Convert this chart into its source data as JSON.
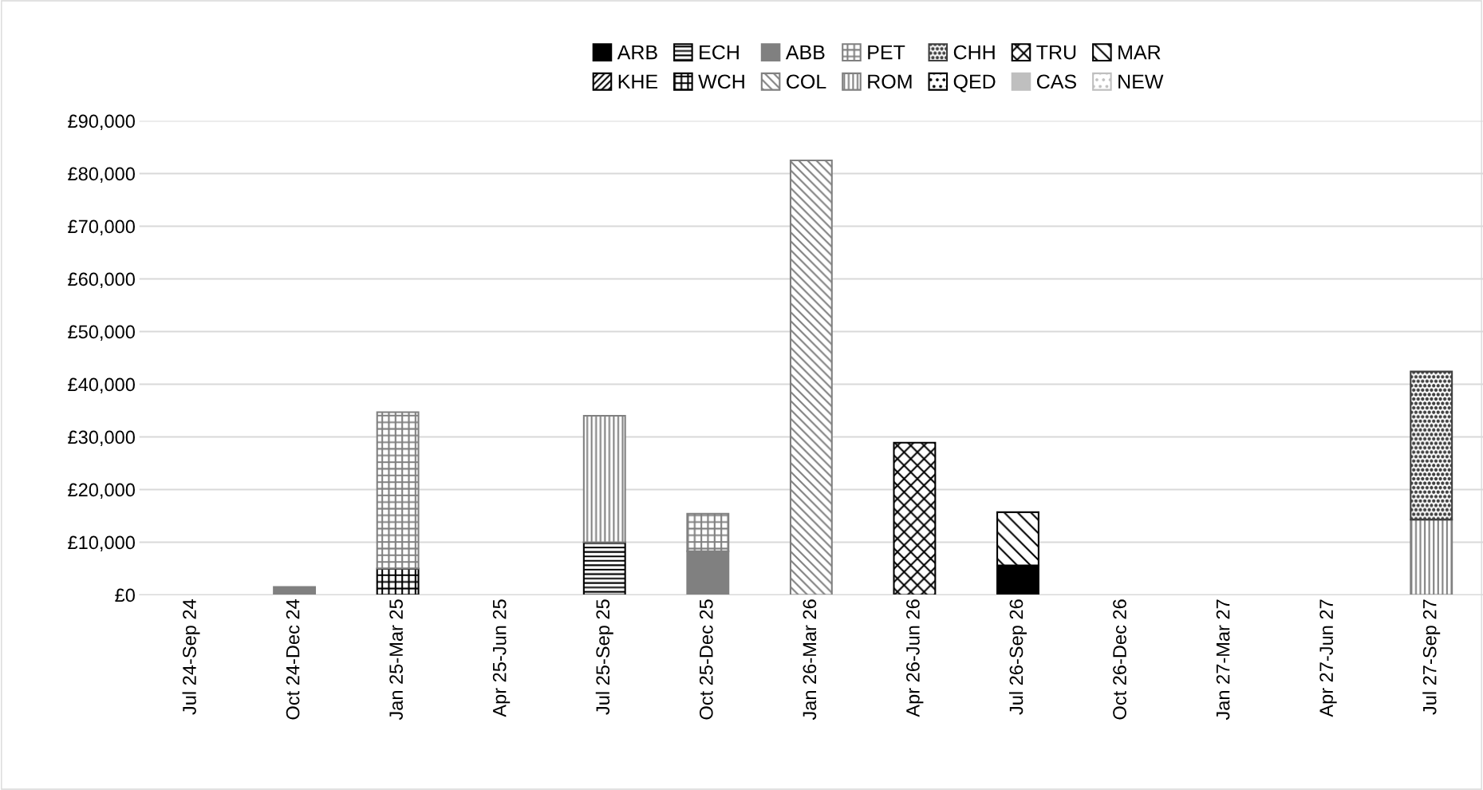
{
  "chart_data": {
    "type": "bar",
    "stacked": true,
    "categories": [
      "Jul 24-Sep 24",
      "Oct 24-Dec 24",
      "Jan 25-Mar 25",
      "Apr 25-Jun 25",
      "Jul 25-Sep 25",
      "Oct 25-Dec 25",
      "Jan 26-Mar 26",
      "Apr 26-Jun 26",
      "Jul 26-Sep 26",
      "Oct 26-Dec 26",
      "Jan 27-Mar 27",
      "Apr 27-Jun 27",
      "Jul 27-Sep 27"
    ],
    "series": [
      {
        "name": "ARB",
        "color": "#000000",
        "values": [
          null,
          null,
          null,
          null,
          null,
          null,
          null,
          null,
          5600,
          null,
          null,
          null,
          null
        ]
      },
      {
        "name": "KHE",
        "color": "#000000",
        "values": [
          null,
          null,
          null,
          null,
          null,
          null,
          null,
          null,
          null,
          null,
          null,
          null,
          null
        ]
      },
      {
        "name": "ECH",
        "color": "#000000",
        "values": [
          null,
          null,
          null,
          null,
          10000,
          null,
          null,
          null,
          null,
          null,
          null,
          null,
          null
        ]
      },
      {
        "name": "WCH",
        "color": "#000000",
        "values": [
          null,
          null,
          5000,
          null,
          null,
          null,
          null,
          null,
          null,
          null,
          null,
          null,
          null
        ]
      },
      {
        "name": "ABB",
        "color": "#808080",
        "values": [
          null,
          1500,
          null,
          null,
          null,
          8300,
          null,
          null,
          null,
          null,
          null,
          null,
          null
        ]
      },
      {
        "name": "COL",
        "color": "#808080",
        "values": [
          null,
          null,
          null,
          null,
          null,
          null,
          82500,
          null,
          null,
          null,
          null,
          null,
          null
        ]
      },
      {
        "name": "PET",
        "color": "#808080",
        "values": [
          null,
          null,
          29700,
          null,
          null,
          7100,
          null,
          null,
          null,
          null,
          null,
          null,
          null
        ]
      },
      {
        "name": "ROM",
        "color": "#808080",
        "values": [
          null,
          null,
          null,
          null,
          24000,
          null,
          null,
          null,
          null,
          null,
          null,
          null,
          14300
        ]
      },
      {
        "name": "CHH",
        "color": "#404040",
        "values": [
          null,
          null,
          null,
          null,
          null,
          null,
          null,
          null,
          null,
          null,
          null,
          null,
          28100
        ]
      },
      {
        "name": "QED",
        "color": "#000000",
        "values": [
          null,
          null,
          null,
          null,
          null,
          null,
          null,
          null,
          null,
          null,
          null,
          null,
          null
        ]
      },
      {
        "name": "TRU",
        "color": "#000000",
        "values": [
          null,
          null,
          null,
          null,
          null,
          null,
          null,
          28900,
          null,
          null,
          null,
          null,
          null
        ]
      },
      {
        "name": "CAS",
        "color": "#bfbfbf",
        "values": [
          null,
          null,
          null,
          null,
          null,
          null,
          null,
          null,
          null,
          null,
          null,
          null,
          null
        ]
      },
      {
        "name": "MAR",
        "color": "#000000",
        "values": [
          null,
          null,
          null,
          null,
          null,
          null,
          null,
          null,
          10100,
          null,
          null,
          null,
          null
        ]
      },
      {
        "name": "NEW",
        "color": "#bfbfbf",
        "values": [
          null,
          null,
          null,
          null,
          null,
          null,
          null,
          null,
          null,
          null,
          null,
          null,
          null
        ]
      }
    ],
    "ylim": [
      0,
      90000
    ],
    "yticks": [
      {
        "value": 0,
        "label": "£0"
      },
      {
        "value": 10000,
        "label": "£10,000"
      },
      {
        "value": 20000,
        "label": "£20,000"
      },
      {
        "value": 30000,
        "label": "£30,000"
      },
      {
        "value": 40000,
        "label": "£40,000"
      },
      {
        "value": 50000,
        "label": "£50,000"
      },
      {
        "value": 60000,
        "label": "£60,000"
      },
      {
        "value": 70000,
        "label": "£70,000"
      },
      {
        "value": 80000,
        "label": "£80,000"
      },
      {
        "value": 90000,
        "label": "£90,000"
      }
    ],
    "grid": "y",
    "legend": "top"
  }
}
